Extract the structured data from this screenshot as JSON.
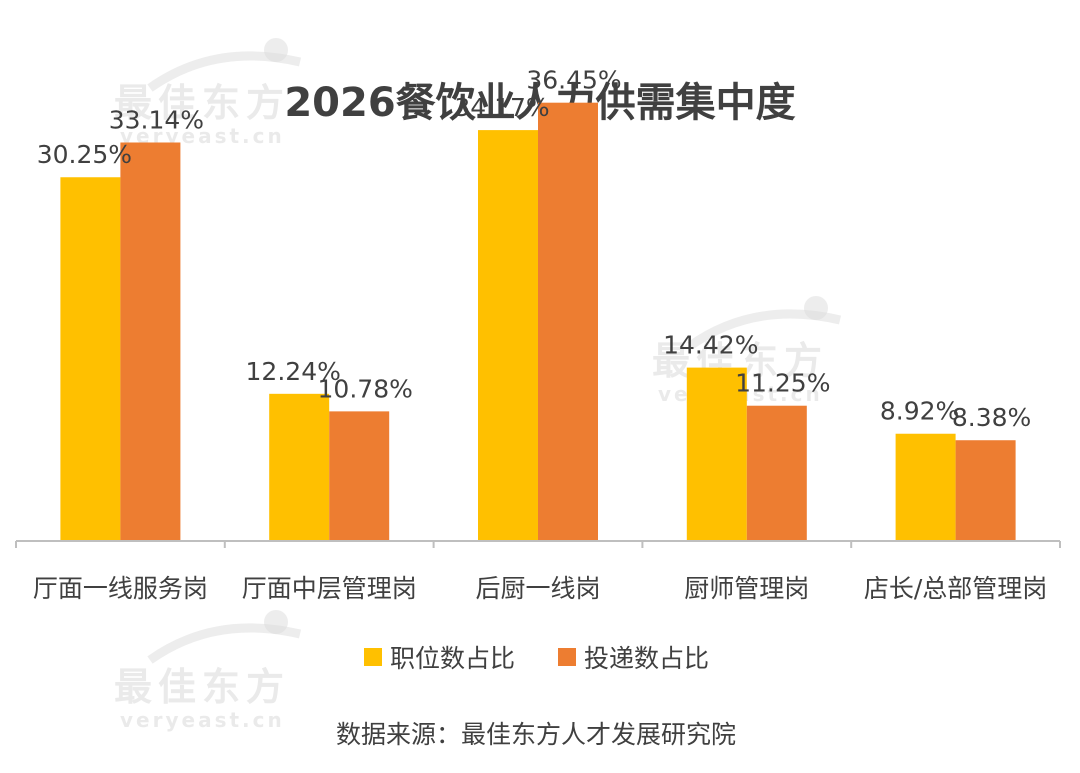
{
  "chart_data": {
    "type": "bar",
    "title": "2026餐饮业人力供需集中度",
    "categories": [
      "厅面一线服务岗",
      "厅面中层管理岗",
      "后厨一线岗",
      "厨师管理岗",
      "店长/总部管理岗"
    ],
    "series": [
      {
        "name": "职位数占比",
        "color": "#FFC000",
        "values": [
          30.25,
          12.24,
          34.17,
          14.42,
          8.92
        ],
        "labels": [
          "30.25%",
          "12.24%",
          "34.17%",
          "14.42%",
          "8.92%"
        ]
      },
      {
        "name": "投递数占比",
        "color": "#ED7D31",
        "values": [
          33.14,
          10.78,
          36.45,
          11.25,
          8.38
        ],
        "labels": [
          "33.14%",
          "10.78%",
          "36.45%",
          "11.25%",
          "8.38%"
        ]
      }
    ],
    "ylim": [
      0,
      40
    ],
    "xlabel": "",
    "ylabel": "",
    "grid": false,
    "legend_position": "bottom"
  },
  "source": "数据来源：最佳东方人才发展研究院",
  "watermark": {
    "cn": "最佳东方",
    "en": "veryeast.cn"
  }
}
